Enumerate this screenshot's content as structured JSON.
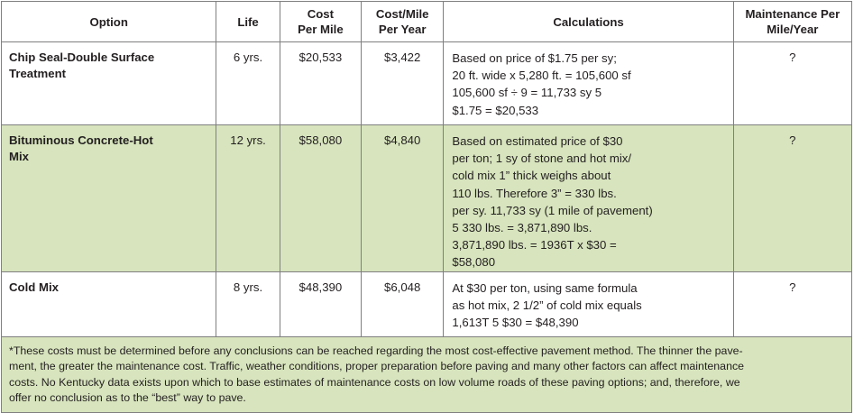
{
  "headers": {
    "option": "Option",
    "life": "Life",
    "cost_per_mile": [
      "Cost",
      "Per Mile"
    ],
    "cost_per_mile_per_year": [
      "Cost/Mile",
      "Per Year"
    ],
    "calculations": "Calculations",
    "maintenance": [
      "Maintenance Per",
      "Mile/Year"
    ]
  },
  "rows": [
    {
      "option": [
        "Chip Seal-Double Surface",
        "Treatment"
      ],
      "life": "6 yrs.",
      "cost_per_mile": "$20,533",
      "cost_per_mile_per_year": "$3,422",
      "calculations": [
        "Based on price of $1.75 per sy;",
        "20 ft. wide x 5,280 ft. = 105,600 sf",
        "105,600 sf ÷ 9 = 11,733 sy 5",
        "$1.75 = $20,533"
      ],
      "maintenance": "?"
    },
    {
      "option": [
        "Bituminous Concrete-Hot",
        "Mix"
      ],
      "life": "12 yrs.",
      "cost_per_mile": "$58,080",
      "cost_per_mile_per_year": "$4,840",
      "calculations": [
        "Based on estimated price of $30",
        "per ton; 1 sy of stone and hot mix/",
        "cold mix 1” thick weighs about",
        "110 lbs. Therefore 3” = 330 lbs.",
        "per sy. 11,733 sy (1 mile of pavement)",
        "5 330 lbs. = 3,871,890 lbs.",
        "3,871,890 lbs. = 1936T x $30 =",
        "$58,080"
      ],
      "maintenance": "?"
    },
    {
      "option": [
        "Cold Mix"
      ],
      "life": "8 yrs.",
      "cost_per_mile": "$48,390",
      "cost_per_mile_per_year": "$6,048",
      "calculations": [
        "At $30 per ton, using same formula",
        "as hot mix, 2 1/2” of cold mix equals",
        "1,613T 5 $30 = $48,390"
      ],
      "maintenance": "?"
    }
  ],
  "footnote": [
    "*These costs must be determined before any conclusions can be reached regarding the most cost-effective pavement method. The thinner the pave-",
    "ment, the greater the maintenance cost. Traffic, weather conditions, proper preparation before paving and many other factors can affect maintenance",
    "costs. No Kentucky data exists upon which to base estimates of maintenance costs on low volume roads of these paving options; and, therefore, we",
    "offer no conclusion as to the “best” way to pave."
  ]
}
